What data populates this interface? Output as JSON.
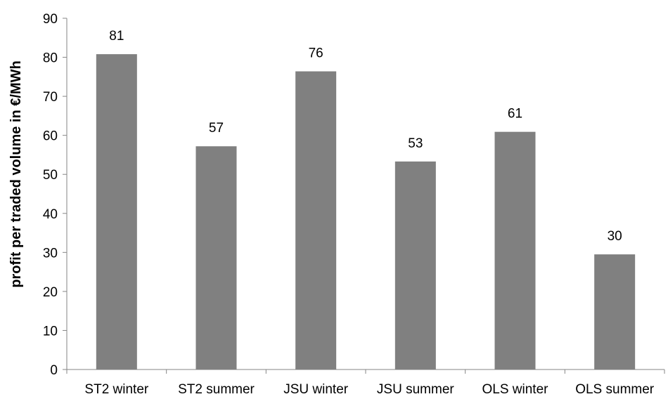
{
  "chart_data": {
    "type": "bar",
    "categories": [
      "ST2 winter",
      "ST2 summer",
      "JSU winter",
      "JSU summer",
      "OLS winter",
      "OLS summer"
    ],
    "values": [
      80.8,
      57.2,
      76.4,
      53.3,
      60.9,
      29.5
    ],
    "data_labels": [
      "81",
      "57",
      "76",
      "53",
      "61",
      "30"
    ],
    "title": "",
    "xlabel": "",
    "ylabel": "profit per traded volume in €/MWh",
    "ylim": [
      0,
      90
    ],
    "yticks": [
      0,
      10,
      20,
      30,
      40,
      50,
      60,
      70,
      80,
      90
    ],
    "grid": false,
    "legend": "none",
    "bar_color": "#808080",
    "axis_color": "#868686"
  }
}
